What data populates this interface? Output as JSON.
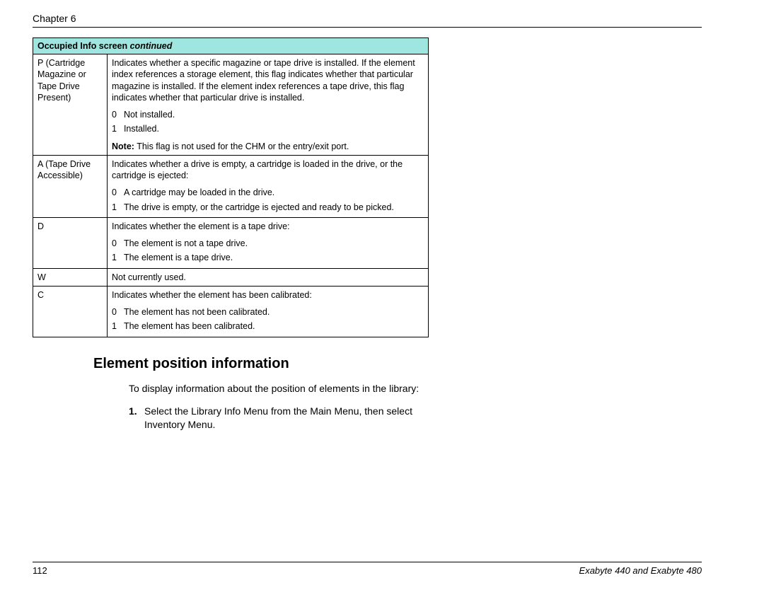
{
  "chapter_label": "Chapter 6",
  "table": {
    "header_bg": "#9fe6e0",
    "title_bold": "Occupied Info screen",
    "title_cont": "continued",
    "rows": [
      {
        "label": "P (Cartridge Magazine or Tape Drive Present)",
        "desc": "Indicates whether a specific magazine or tape drive is installed. If the element index references a storage element, this flag indicates whether that particular magazine is installed. If the element index references a tape drive, this flag indicates whether that particular drive is installed.",
        "items": [
          {
            "k": "0",
            "v": "Not installed."
          },
          {
            "k": "1",
            "v": "Installed."
          }
        ],
        "note_label": "Note:",
        "note_text": "This flag is not used for the CHM or the entry/exit port."
      },
      {
        "label": "A (Tape Drive Accessible)",
        "desc": "Indicates whether a drive is empty, a cartridge is loaded in the drive, or the cartridge is ejected:",
        "items": [
          {
            "k": "0",
            "v": "A cartridge may be loaded in the drive."
          },
          {
            "k": "1",
            "v": "The drive is empty, or the cartridge is ejected and ready to be picked."
          }
        ]
      },
      {
        "label": "D",
        "desc": "Indicates whether the element is a tape drive:",
        "items": [
          {
            "k": "0",
            "v": "The element is not a tape drive."
          },
          {
            "k": "1",
            "v": "The element is a tape drive."
          }
        ]
      },
      {
        "label": "W",
        "desc": "Not currently used."
      },
      {
        "label": "C",
        "desc": "Indicates whether the element has been calibrated:",
        "items": [
          {
            "k": "0",
            "v": "The element has not been calibrated."
          },
          {
            "k": "1",
            "v": "The element has been calibrated."
          }
        ]
      }
    ]
  },
  "section_title": "Element position information",
  "intro_text": "To display information about the position of elements in the library:",
  "steps": [
    {
      "num": "1.",
      "text": "Select the Library Info Menu from the Main Menu, then select Inventory Menu."
    }
  ],
  "footer": {
    "page_num": "112",
    "doc_title": "Exabyte 440 and Exabyte 480"
  }
}
